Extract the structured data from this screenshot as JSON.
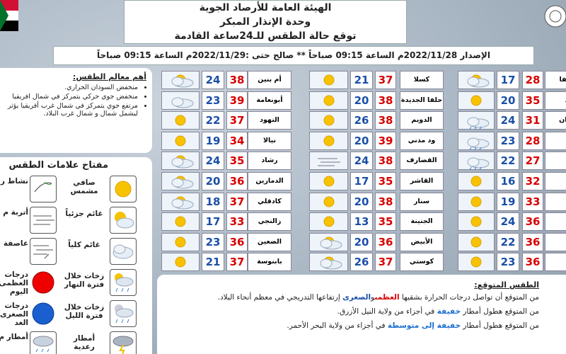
{
  "header": {
    "org": "الهيئة العامة للأرصاد الجوية",
    "unit": "وحدة الإنذار المبكر",
    "title": "توقع حالة الطقس للـ24ساعة القادمة"
  },
  "issue": "الإصدار 2022/11/28م الساعة 09:15 صباحاً ** صالح حتى :2022/11/29م الساعة 09:15 صباحاً",
  "tables": [
    {
      "rows": [
        [
          "حلفا",
          28,
          17
        ],
        [
          "د",
          35,
          20
        ],
        [
          "ردان",
          31,
          24
        ],
        [
          null,
          28,
          23
        ],
        [
          null,
          27,
          22
        ],
        [
          null,
          32,
          16
        ],
        [
          null,
          33,
          19
        ],
        [
          null,
          36,
          24
        ],
        [
          null,
          36,
          22
        ],
        [
          null,
          36,
          23
        ]
      ]
    },
    {
      "rows": [
        [
          "كسلا",
          37,
          21
        ],
        [
          "حلفا الجديدة",
          38,
          20
        ],
        [
          "الدويم",
          38,
          26
        ],
        [
          "ود مدني",
          39,
          20
        ],
        [
          "القضارف",
          38,
          24
        ],
        [
          "القاشر",
          35,
          17
        ],
        [
          "سنار",
          38,
          20
        ],
        [
          "الجنينة",
          35,
          13
        ],
        [
          "الأبيض",
          36,
          20
        ],
        [
          "كوستي",
          37,
          26
        ]
      ]
    },
    {
      "rows": [
        [
          "أم بنين",
          38,
          24
        ],
        [
          "أبونعامة",
          39,
          23
        ],
        [
          "النهود",
          37,
          22
        ],
        [
          "نيالا",
          34,
          19
        ],
        [
          "رشاد",
          35,
          24
        ],
        [
          "الدمازين",
          36,
          20
        ],
        [
          "كادقلي",
          37,
          18
        ],
        [
          "زالنجي",
          33,
          17
        ],
        [
          "الضعين",
          36,
          23
        ],
        [
          "بابنوسة",
          37,
          21
        ]
      ]
    }
  ],
  "features": {
    "title": "أهم معالم الطقس:",
    "items": [
      "منخفض السودان الحراري.",
      "منخفض جوي حركي يتمركز في شمال افريقيا",
      "مرتفع جوي يتمركز في شمال غرب أفريقيا يؤثر ليشمل شمال و شمال غرب البلاد."
    ]
  },
  "key": {
    "title": "مفتاح علامات الطقس",
    "items": [
      "صافي مشمس",
      "غائم جزئياً",
      "غائم كلياً",
      "زخات خلال فترة النهار",
      "زخات خلال فترة الليل",
      "أمطار رعدية"
    ],
    "items2": [
      "نشاط ر",
      "أتربة م",
      "عاصفة",
      "درجات العظمى اليوم",
      "درجات الصغرى الغد",
      "أمطار م"
    ]
  },
  "forecast": {
    "title": "الطقس المتوقع:",
    "lines": [
      [
        "من المتوقع أن تواصل درجات الحرارة بشقيها ",
        {
          "text": "العظمى",
          "color": "#d80000"
        },
        "و",
        {
          "text": "الصغرى",
          "color": "#1a4fa8"
        },
        " إرتفاعها التدريجي في معظم أنحاء البلاد."
      ],
      [
        "من المتوقع هطول أمطار ",
        {
          "text": "خفيفة",
          "color": "#1a6fd0"
        },
        " في أجزاء من ولاية النيل الأزرق."
      ],
      [
        "من المتوقع هطول أمطار ",
        {
          "text": "خفيفة إلى متوسطة",
          "color": "#1a6fd0"
        },
        " في أجزاء من ولاية البحر الأحمر."
      ]
    ]
  }
}
